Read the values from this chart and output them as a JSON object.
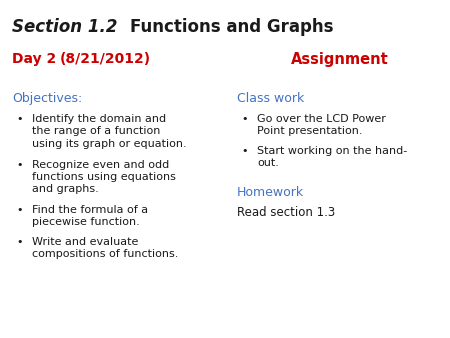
{
  "title_italic": "Section 1.2",
  "title_bold": "Functions and Graphs",
  "day_label": "Day 2",
  "day_date": "(8/21/2012)",
  "assignment_label": "Assignment",
  "objectives_label": "Objectives:",
  "objectives_bullets": [
    "Identify the domain and\nthe range of a function\nusing its graph or equation.",
    "Recognize even and odd\nfunctions using equations\nand graphs.",
    "Find the formula of a\npiecewise function.",
    "Write and evaluate\ncompositions of functions."
  ],
  "classwork_label": "Class work",
  "classwork_bullets": [
    "Go over the LCD Power\nPoint presentation.",
    "Start working on the hand-\nout."
  ],
  "homework_label": "Homework",
  "homework_text": "Read section 1.3",
  "color_red": "#CC0000",
  "color_blue": "#4472C4",
  "color_black": "#1a1a1a",
  "bg_color": "#FFFFFF",
  "fig_width": 4.5,
  "fig_height": 3.38,
  "dpi": 100
}
